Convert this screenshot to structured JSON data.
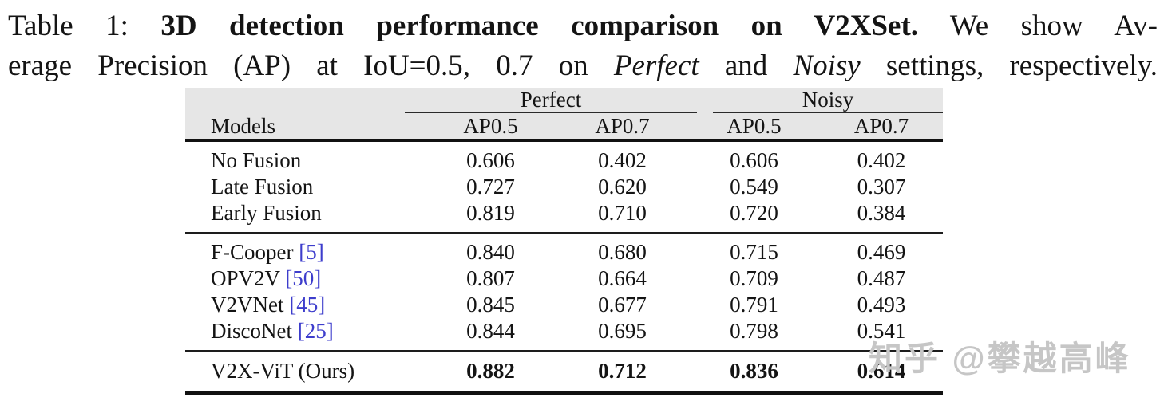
{
  "caption": {
    "line1": {
      "label": "Table 1: ",
      "bold": "3D detection performance comparison on V2XSet.",
      "tail": " We show Av-"
    },
    "line2": {
      "lead": "erage Precision (AP) at IoU=0.5, 0.7 on ",
      "perfect": "Perfect",
      "mid": " and ",
      "noisy": "Noisy",
      "tail": " settings, respectively."
    }
  },
  "table": {
    "header": {
      "models": "Models",
      "perfect": "Perfect",
      "noisy": "Noisy",
      "sub": [
        "AP0.5",
        "AP0.7",
        "AP0.5",
        "AP0.7"
      ]
    },
    "sections": [
      {
        "rows": [
          {
            "name": "No Fusion",
            "values": [
              "0.606",
              "0.402",
              "0.606",
              "0.402"
            ]
          },
          {
            "name": "Late Fusion",
            "values": [
              "0.727",
              "0.620",
              "0.549",
              "0.307"
            ]
          },
          {
            "name": "Early Fusion",
            "values": [
              "0.819",
              "0.710",
              "0.720",
              "0.384"
            ]
          }
        ]
      },
      {
        "rows": [
          {
            "name": "F-Cooper",
            "cite": "[5]",
            "values": [
              "0.840",
              "0.680",
              "0.715",
              "0.469"
            ]
          },
          {
            "name": "OPV2V",
            "cite": "[50]",
            "values": [
              "0.807",
              "0.664",
              "0.709",
              "0.487"
            ]
          },
          {
            "name": "V2VNet",
            "cite": "[45]",
            "values": [
              "0.845",
              "0.677",
              "0.791",
              "0.493"
            ]
          },
          {
            "name": "DiscoNet",
            "cite": "[25]",
            "values": [
              "0.844",
              "0.695",
              "0.798",
              "0.541"
            ]
          }
        ]
      },
      {
        "rows": [
          {
            "name": "V2X-ViT (Ours)",
            "values": [
              "0.882",
              "0.712",
              "0.836",
              "0.614"
            ]
          }
        ]
      }
    ]
  },
  "watermark": {
    "text": "知乎 @攀越高峰"
  },
  "colors": {
    "citation_blue": "#3d3dcc",
    "header_gray": "#e6e6e6",
    "watermark_gray": "#c6c6c6"
  }
}
